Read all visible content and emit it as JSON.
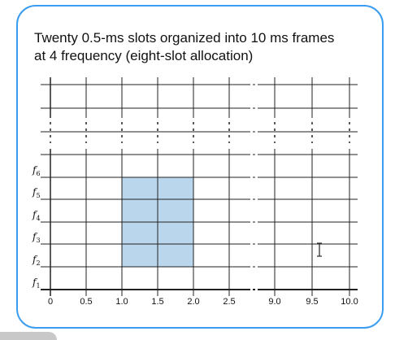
{
  "title": {
    "line1": "Twenty 0.5-ms slots organized into 10 ms frames",
    "line2": "at 4 frequency (eight-slot allocation)"
  },
  "x_axis": {
    "ticks": [
      "0",
      "0.5",
      "1.0",
      "1.5",
      "2.0",
      "2.5",
      "9.0",
      "9.5",
      "10.0"
    ],
    "gap_after_index": 5
  },
  "y_axis": {
    "freq_labels": [
      {
        "base": "f",
        "sub": "1"
      },
      {
        "base": "f",
        "sub": "2"
      },
      {
        "base": "f",
        "sub": "3"
      },
      {
        "base": "f",
        "sub": "4"
      },
      {
        "base": "f",
        "sub": "5"
      },
      {
        "base": "f",
        "sub": "6"
      }
    ],
    "rows_above_gap": 2
  },
  "allocation": {
    "time_start_ms": 1.0,
    "time_end_ms": 2.0,
    "freq_rows": [
      "f2",
      "f3",
      "f4",
      "f5"
    ],
    "color": "#b9d6ec"
  },
  "colors": {
    "border": "#3a9df0",
    "grid": "#222222"
  }
}
